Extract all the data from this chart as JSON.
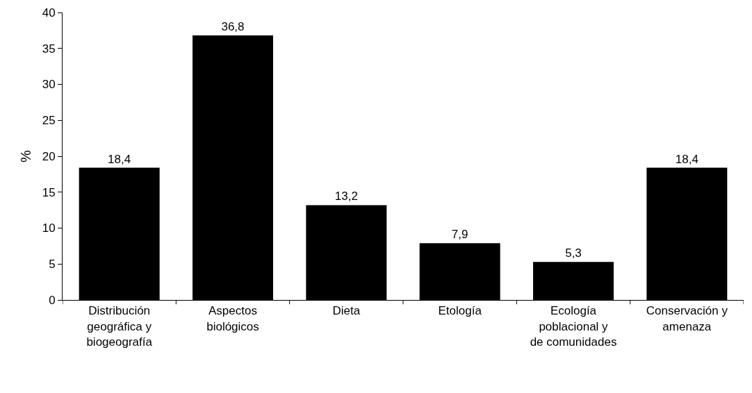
{
  "chart_data": {
    "type": "bar",
    "ylabel": "%",
    "categories": [
      "Distribución geográfica y biogeografía",
      "Aspectos biológicos",
      "Dieta",
      "Etología",
      "Ecología poblacional y de comunidades",
      "Conservación y amenaza"
    ],
    "values": [
      18.4,
      36.8,
      13.2,
      7.9,
      5.3,
      18.4
    ],
    "value_labels": [
      "18,4",
      "36,8",
      "13,2",
      "7,9",
      "5,3",
      "18,4"
    ],
    "color": "#000000",
    "ylim": [
      0,
      40
    ],
    "yticks": [
      0,
      5,
      10,
      15,
      20,
      25,
      30,
      35,
      40
    ],
    "grid": false
  }
}
